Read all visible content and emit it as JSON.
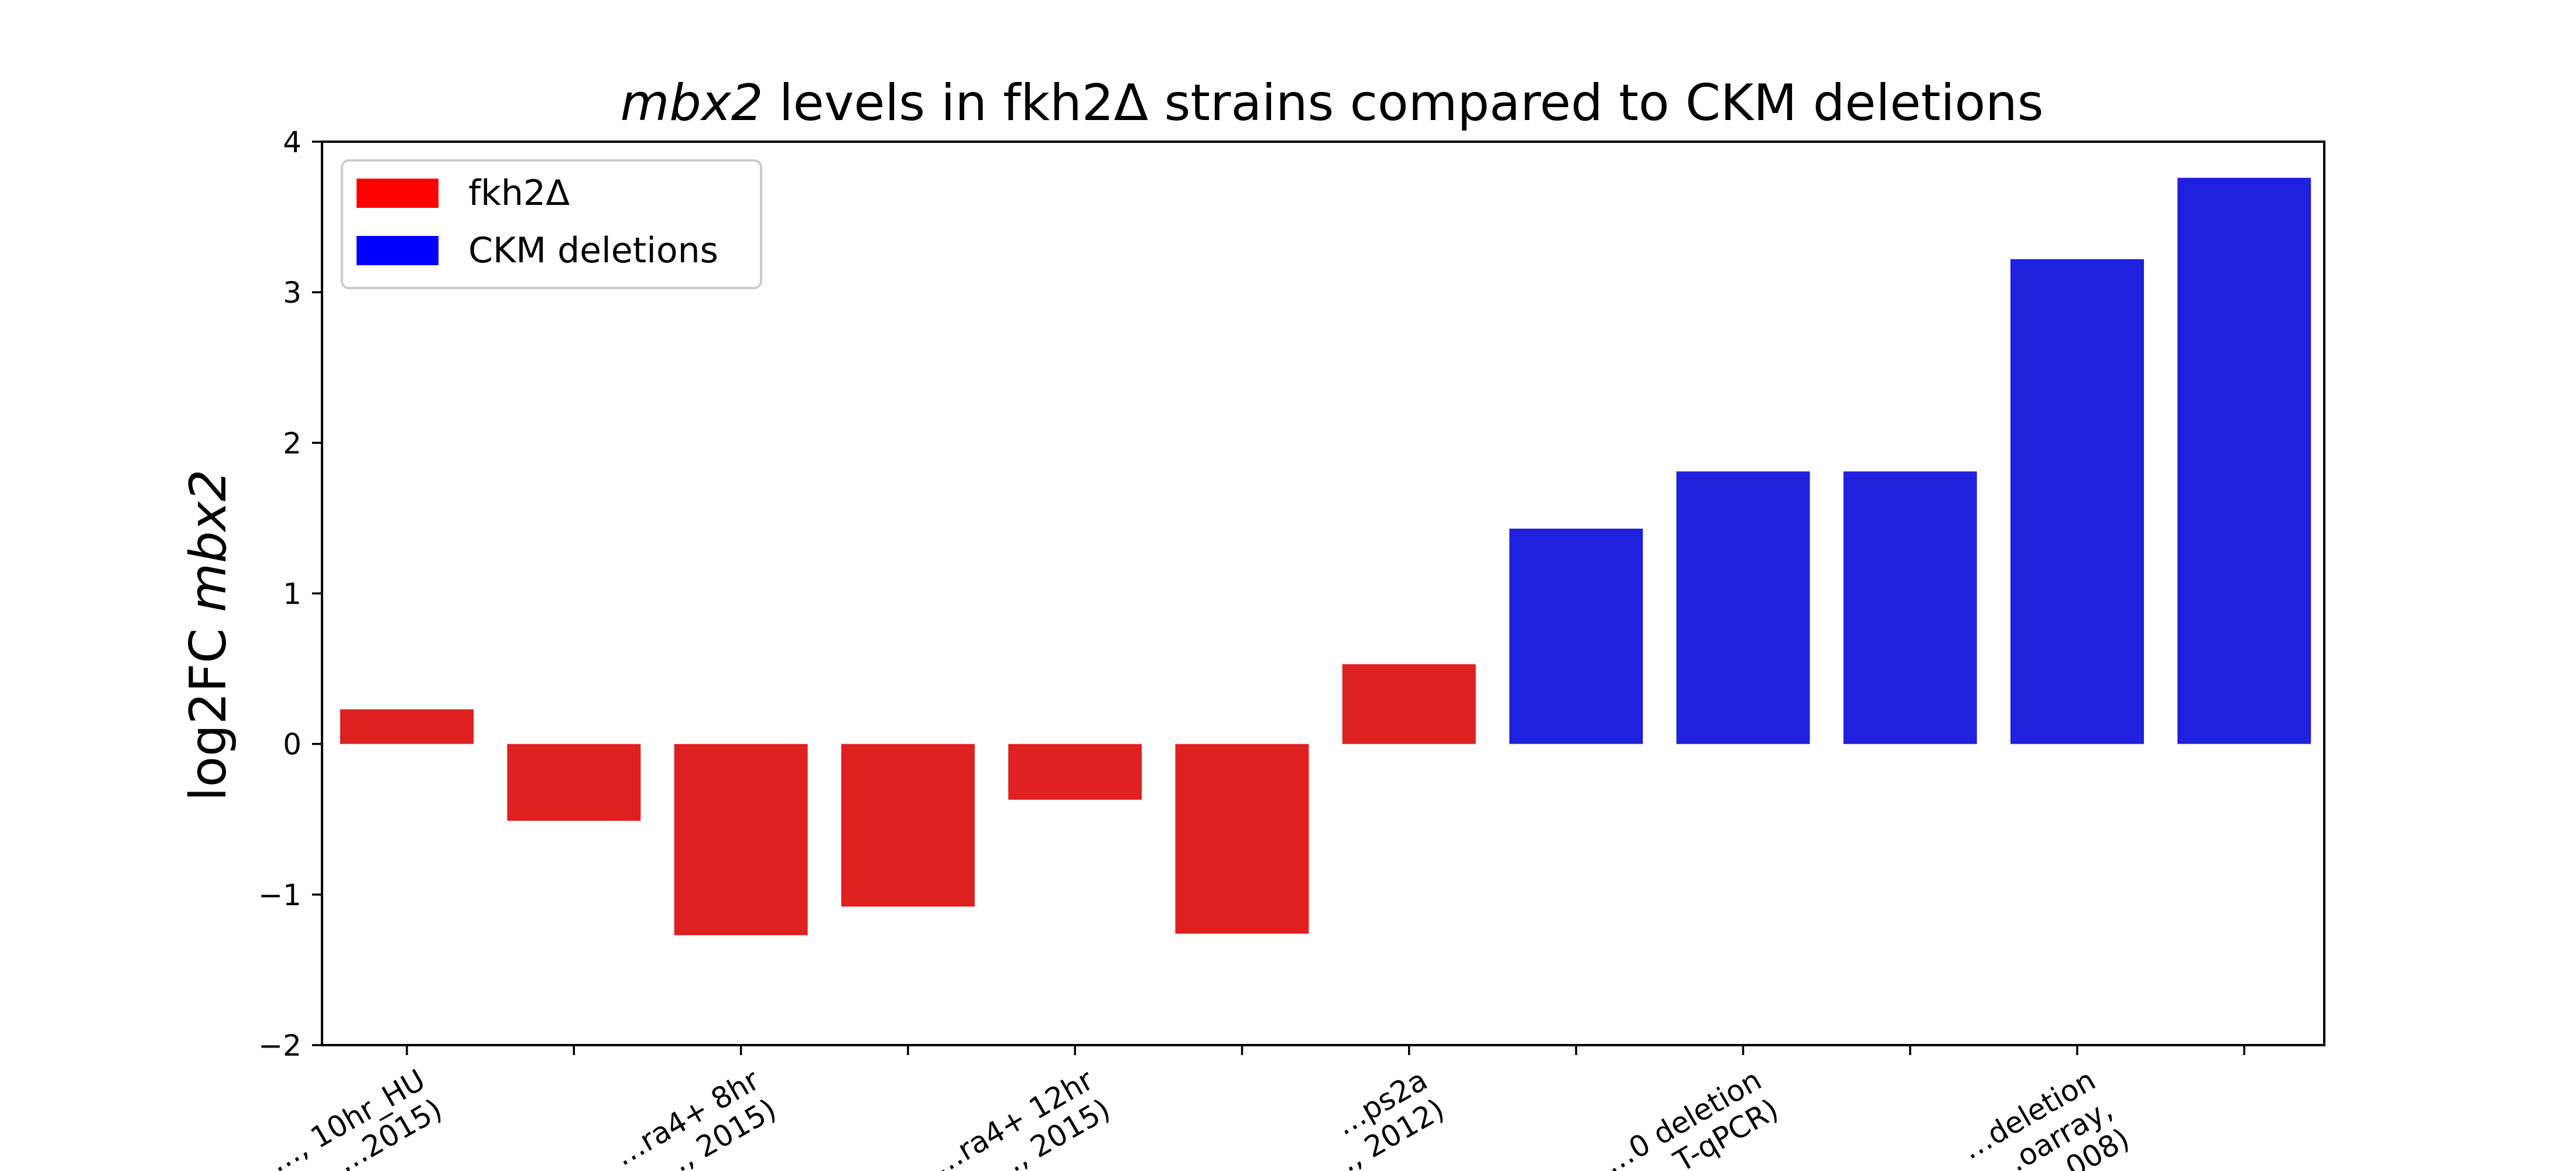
{
  "chart_data": {
    "type": "bar",
    "title": {
      "italic": "mbx2",
      "rest": " levels in fkh2Δ strains compared to CKM deletions"
    },
    "ylabel": {
      "prefix": "log2FC ",
      "italic": "mbx2"
    },
    "xlabel": "",
    "ylim": [
      -2,
      4
    ],
    "yticks": [
      -2,
      -1,
      0,
      1,
      2,
      3,
      4
    ],
    "ytick_labels": [
      "−2",
      "−1",
      "0",
      "1",
      "2",
      "3",
      "4"
    ],
    "grid": false,
    "legend_position": "top-left",
    "colors": {
      "fkh2": "#df2020",
      "ckm": "#2020df",
      "legend_fkh2": "#ff0000",
      "legend_ckm": "#0000ff"
    },
    "legend": [
      {
        "label": "fkh2Δ",
        "color_key": "legend_fkh2"
      },
      {
        "label": "CKM deletions",
        "color_key": "legend_ckm"
      }
    ],
    "categories": [
      {
        "label": "",
        "visible_lines": [
          "…, 10hr_HU",
          "…2015)"
        ]
      },
      {
        "label": "",
        "visible_lines": []
      },
      {
        "label": "",
        "visible_lines": [
          "…ra4+ 8hr",
          "…, 2015)"
        ]
      },
      {
        "label": "",
        "visible_lines": []
      },
      {
        "label": "",
        "visible_lines": [
          "…ra4+ 12hr",
          "…, 2015)"
        ]
      },
      {
        "label": "",
        "visible_lines": []
      },
      {
        "label": "",
        "visible_lines": [
          "…ps2a",
          "…, 2012)"
        ]
      },
      {
        "label": "",
        "visible_lines": []
      },
      {
        "label": "",
        "visible_lines": [
          "…0 deletion",
          "…T-qPCR)"
        ]
      },
      {
        "label": "",
        "visible_lines": []
      },
      {
        "label": "",
        "visible_lines": [
          "…deletion",
          "…oarray,",
          "…008)"
        ]
      },
      {
        "label": "",
        "visible_lines": []
      }
    ],
    "series": [
      {
        "group": "fkh2",
        "values": [
          0.23,
          -0.51,
          -1.27,
          -1.08,
          -0.37,
          -1.26,
          0.53,
          null,
          null,
          null,
          null,
          null
        ]
      },
      {
        "group": "ckm",
        "values": [
          null,
          null,
          null,
          null,
          null,
          null,
          null,
          1.43,
          1.81,
          1.81,
          3.22,
          3.76
        ]
      }
    ]
  }
}
